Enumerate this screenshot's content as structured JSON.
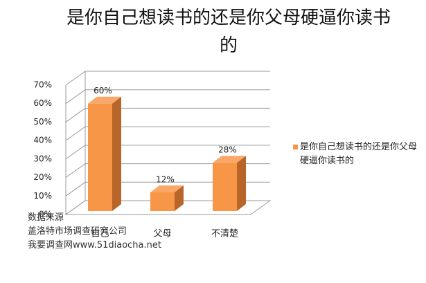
{
  "chart_data": {
    "type": "bar3d",
    "title": "是你自己想读书的还是你父母硬逼你读书的",
    "categories": [
      "自己",
      "父母",
      "不清楚"
    ],
    "series": [
      {
        "name": "是你自己想读书的还是你父母硬逼你读书的",
        "color": "#f79646",
        "values": [
          60,
          12,
          28
        ],
        "value_labels": [
          "60%",
          "12%",
          "28%"
        ]
      }
    ],
    "ylim": [
      0,
      70
    ],
    "yticks": [
      {
        "value": 0,
        "label": "0%"
      },
      {
        "value": 10,
        "label": "10%"
      },
      {
        "value": 20,
        "label": "20%"
      },
      {
        "value": 30,
        "label": "30%"
      },
      {
        "value": 40,
        "label": "40%"
      },
      {
        "value": 50,
        "label": "50%"
      },
      {
        "value": 60,
        "label": "60%"
      },
      {
        "value": 70,
        "label": "70%"
      }
    ],
    "grid": true,
    "legend": "right",
    "annotations": [
      "数据来源",
      "盖洛特市场调查研究公司",
      "我要调查网www.51diaocha.net"
    ]
  }
}
